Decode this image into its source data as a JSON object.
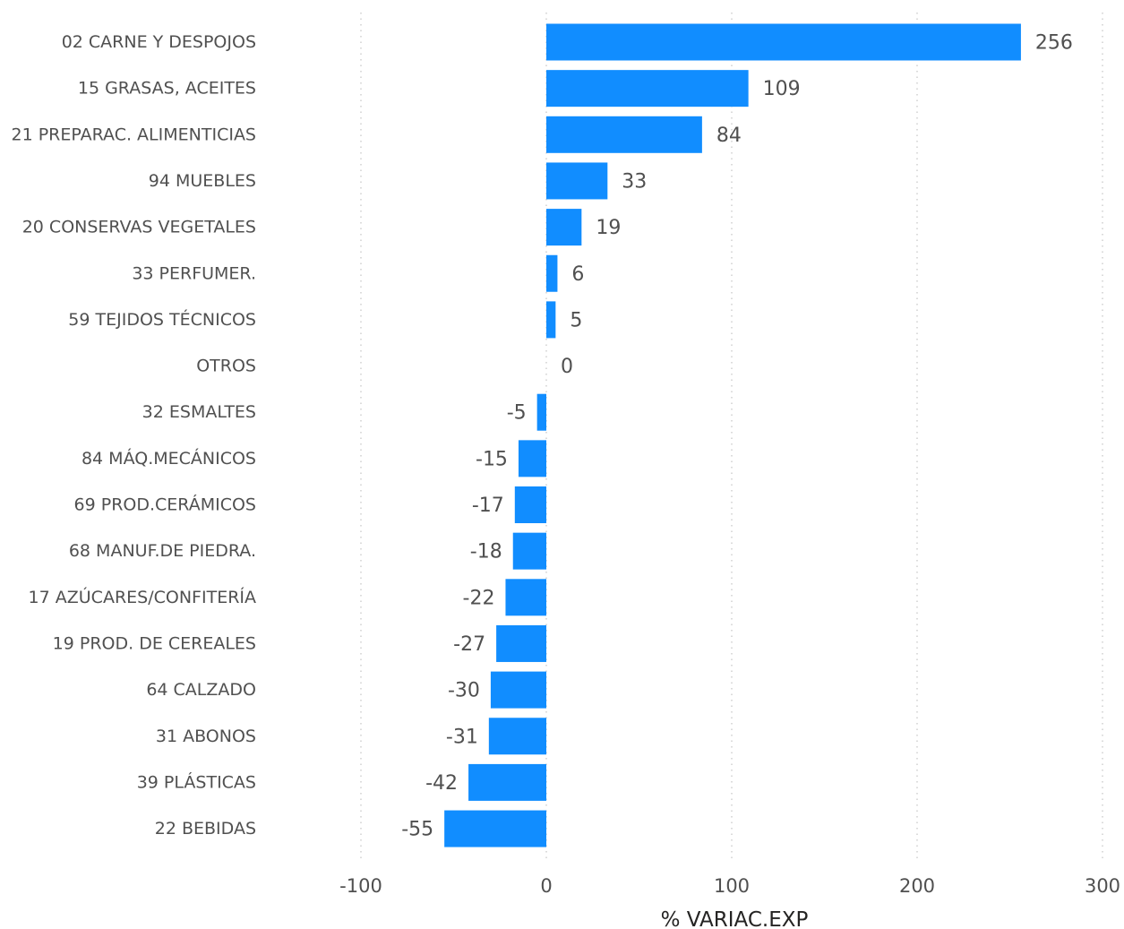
{
  "chart_data": {
    "type": "bar",
    "orientation": "horizontal",
    "categories": [
      "02 CARNE Y DESPOJOS",
      "15 GRASAS, ACEITES",
      "21 PREPARAC. ALIMENTICIAS",
      "94 MUEBLES",
      "20 CONSERVAS VEGETALES",
      "33 PERFUMER.",
      "59 TEJIDOS TÉCNICOS",
      "OTROS",
      "32 ESMALTES",
      "84 MÁQ.MECÁNICOS",
      "69 PROD.CERÁMICOS",
      "68 MANUF.DE PIEDRA.",
      "17 AZÚCARES/CONFITERÍA",
      "19 PROD. DE CEREALES",
      "64 CALZADO",
      "31 ABONOS",
      "39 PLÁSTICAS",
      "22 BEBIDAS"
    ],
    "values": [
      256,
      109,
      84,
      33,
      19,
      6,
      5,
      0,
      -5,
      -15,
      -17,
      -18,
      -22,
      -27,
      -30,
      -31,
      -42,
      -55
    ],
    "value_labels": [
      "256",
      "109",
      "84",
      "33",
      "19",
      "6",
      "5",
      "0",
      "-5",
      "-15",
      "-17",
      "-18",
      "-22",
      "-27",
      "-30",
      "-31",
      "-42",
      "-55"
    ],
    "xlabel": "% VARIAC.EXP",
    "xlim": [
      -100,
      300
    ],
    "xticks": [
      -100,
      0,
      100,
      200,
      300
    ],
    "xtick_labels": [
      "-100",
      "0",
      "100",
      "200",
      "300"
    ],
    "grid": true,
    "bar_color": "#118DFF",
    "text_color": "#505050"
  }
}
